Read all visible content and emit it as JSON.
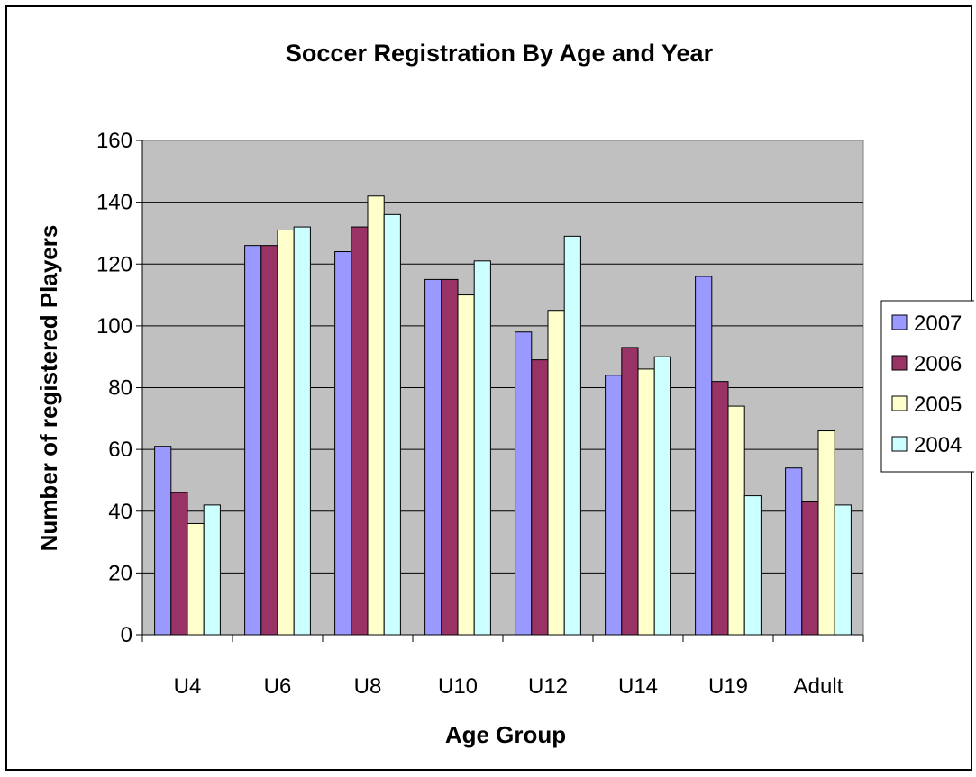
{
  "chart_data": {
    "type": "bar",
    "title": "Soccer Registration By Age and Year",
    "xlabel": "Age Group",
    "ylabel": "Number of registered Players",
    "categories": [
      "U4",
      "U6",
      "U8",
      "U10",
      "U12",
      "U14",
      "U19",
      "Adult"
    ],
    "ylim": [
      0,
      160
    ],
    "yticks": [
      0,
      20,
      40,
      60,
      80,
      100,
      120,
      140,
      160
    ],
    "grid": true,
    "legend_position": "right",
    "plot_background": "#c0c0c0",
    "series": [
      {
        "name": "2007",
        "color": "#9999ff",
        "values": [
          61,
          126,
          124,
          115,
          98,
          84,
          116,
          54
        ]
      },
      {
        "name": "2006",
        "color": "#993366",
        "values": [
          46,
          126,
          132,
          115,
          89,
          93,
          82,
          43
        ]
      },
      {
        "name": "2005",
        "color": "#ffffcc",
        "values": [
          36,
          131,
          142,
          110,
          105,
          86,
          74,
          66
        ]
      },
      {
        "name": "2004",
        "color": "#ccffff",
        "values": [
          42,
          132,
          136,
          121,
          129,
          90,
          45,
          42
        ]
      }
    ]
  }
}
